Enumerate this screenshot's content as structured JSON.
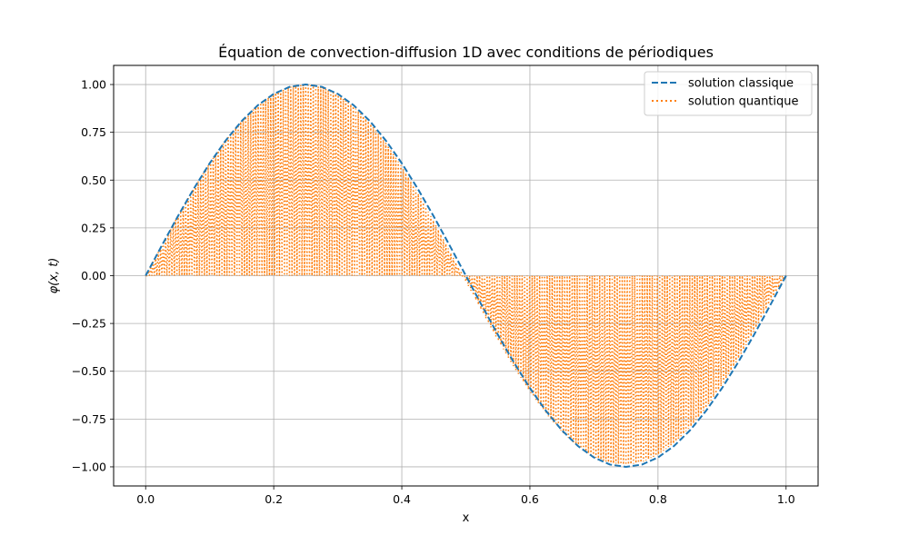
{
  "chart_data": {
    "type": "line",
    "title": "Équation de convection-diffusion 1D avec conditions de périodiques",
    "xlabel": "x",
    "ylabel": "φ(x, t)",
    "xlim": [
      -0.05,
      1.05
    ],
    "ylim": [
      -1.1,
      1.1
    ],
    "grid": true,
    "legend_position": "top-right",
    "x_ticks": [
      {
        "value": 0.0,
        "label": "0.0"
      },
      {
        "value": 0.2,
        "label": "0.2"
      },
      {
        "value": 0.4,
        "label": "0.4"
      },
      {
        "value": 0.6,
        "label": "0.6"
      },
      {
        "value": 0.8,
        "label": "0.8"
      },
      {
        "value": 1.0,
        "label": "1.0"
      }
    ],
    "y_ticks": [
      {
        "value": 1.0,
        "label": "1.00"
      },
      {
        "value": 0.75,
        "label": "0.75"
      },
      {
        "value": 0.5,
        "label": "0.50"
      },
      {
        "value": 0.25,
        "label": "0.25"
      },
      {
        "value": 0.0,
        "label": "0.00"
      },
      {
        "value": -0.25,
        "label": "−0.25"
      },
      {
        "value": -0.5,
        "label": "−0.50"
      },
      {
        "value": -0.75,
        "label": "−0.75"
      },
      {
        "value": -1.0,
        "label": "−1.00"
      }
    ],
    "x": [
      0.0,
      0.025,
      0.05,
      0.075,
      0.1,
      0.125,
      0.15,
      0.175,
      0.2,
      0.225,
      0.25,
      0.275,
      0.3,
      0.325,
      0.35,
      0.375,
      0.4,
      0.425,
      0.45,
      0.475,
      0.5,
      0.525,
      0.55,
      0.575,
      0.6,
      0.625,
      0.65,
      0.675,
      0.7,
      0.725,
      0.75,
      0.775,
      0.8,
      0.825,
      0.85,
      0.875,
      0.9,
      0.925,
      0.95,
      0.975,
      1.0
    ],
    "series": [
      {
        "name": "solution classique",
        "color": "#1f77b4",
        "style": "dashed",
        "values": [
          0.0,
          0.156,
          0.309,
          0.454,
          0.588,
          0.707,
          0.809,
          0.891,
          0.951,
          0.988,
          1.0,
          0.988,
          0.951,
          0.891,
          0.809,
          0.707,
          0.588,
          0.454,
          0.309,
          0.156,
          0.0,
          -0.156,
          -0.309,
          -0.454,
          -0.588,
          -0.707,
          -0.809,
          -0.891,
          -0.951,
          -0.988,
          -1.0,
          -0.988,
          -0.951,
          -0.891,
          -0.809,
          -0.707,
          -0.588,
          -0.454,
          -0.309,
          -0.156,
          0.0
        ]
      },
      {
        "name": "solution quantique",
        "color": "#ff7f0e",
        "style": "dotted",
        "oscillation": "alternates between sin(2πx) and 0 at every sample",
        "values": [
          0.0,
          0.158,
          0.311,
          0.456,
          0.59,
          0.709,
          0.811,
          0.893,
          0.952,
          0.988,
          1.0,
          0.986,
          0.947,
          0.884,
          0.8,
          0.694,
          0.571,
          0.433,
          0.284,
          0.128,
          -0.03,
          -0.186,
          -0.337,
          -0.478,
          -0.607,
          -0.721,
          -0.817,
          -0.893,
          -0.948,
          -0.98,
          -0.99,
          -0.976,
          -0.937,
          -0.876,
          -0.794,
          -0.691,
          -0.571,
          -0.436,
          -0.29,
          -0.136,
          0.0
        ]
      }
    ]
  }
}
